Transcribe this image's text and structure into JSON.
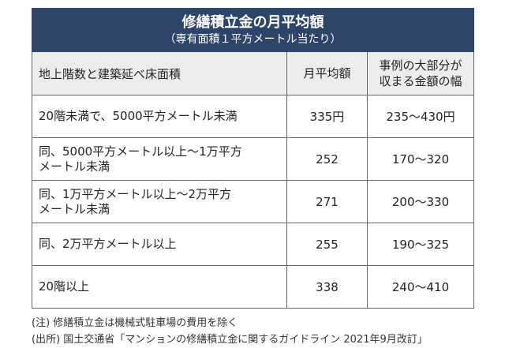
{
  "title": {
    "main": "修繕積立金の月平均額",
    "sub": "（専有面積１平方メートル当たり）"
  },
  "header": {
    "col1": "地上階数と建築延べ床面積",
    "col2": "月平均額",
    "col3_line1": "事例の大部分が",
    "col3_line2": "収まる金額の幅"
  },
  "rows": [
    {
      "condition_line1": "20階未満で、5000平方メートル未満",
      "condition_line2": "",
      "average": "335円",
      "range": "235～430円"
    },
    {
      "condition_line1": "同、5000平方メートル以上～1万平方",
      "condition_line2": "メートル未満",
      "average": "252",
      "range": "170～320"
    },
    {
      "condition_line1": "同、1万平方メートル以上～2万平方",
      "condition_line2": "メートル未満",
      "average": "271",
      "range": "200～330"
    },
    {
      "condition_line1": "同、2万平方メートル以上",
      "condition_line2": "",
      "average": "255",
      "range": "190～325"
    },
    {
      "condition_line1": "20階以上",
      "condition_line2": "",
      "average": "338",
      "range": "240～410"
    }
  ],
  "notes": {
    "note": "(注) 修繕積立金は機械式駐車場の費用を除く",
    "source": "(出所) 国土交通省「マンションの修繕積立金に関するガイドライン 2021年9月改訂」"
  },
  "colors": {
    "title_background": "#2e4468",
    "header_background": "#ececec"
  }
}
